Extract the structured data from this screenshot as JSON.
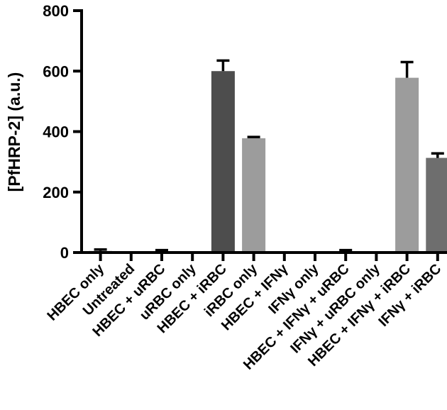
{
  "chart_data": {
    "type": "bar",
    "title": "",
    "xlabel": "",
    "ylabel": "[PfHRP-2] (a.u.)",
    "ylim": [
      0,
      800
    ],
    "yticks": [
      "0",
      "200",
      "400",
      "600",
      "800"
    ],
    "grid": false,
    "categories": [
      "HBEC only",
      "Untreated",
      "HBEC + uRBC",
      "uRBC only",
      "HBEC + iRBC",
      "iRBC only",
      "HBEC + IFNγ",
      "IFNγ only",
      "HBEC + IFNγ + uRBC",
      "IFNγ + uRBC only",
      "HBEC + IFNγ + iRBC",
      "IFNγ + iRBC"
    ],
    "values": [
      5,
      2,
      4,
      2,
      600,
      378,
      2,
      2,
      4,
      2,
      578,
      313
    ],
    "errors": [
      5,
      0,
      4,
      0,
      35,
      4,
      0,
      0,
      4,
      0,
      52,
      15
    ],
    "bar_colors": [
      "#5a5a5a",
      "#5a5a5a",
      "#5a5a5a",
      "#5a5a5a",
      "#4d4d4d",
      "#9c9c9c",
      "#5a5a5a",
      "#5a5a5a",
      "#5a5a5a",
      "#5a5a5a",
      "#9c9c9c",
      "#6e6e6e"
    ]
  }
}
